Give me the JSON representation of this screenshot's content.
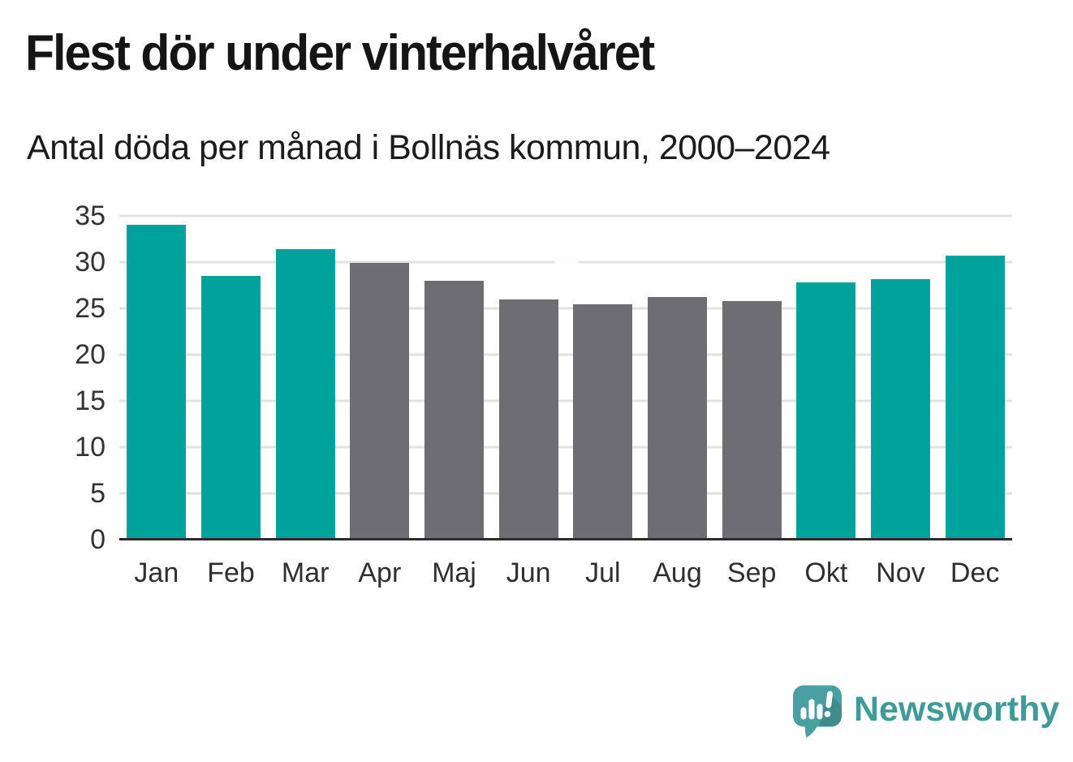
{
  "page": {
    "title": "Flest dör under vinterhalvåret",
    "subtitle": "Antal döda per månad i Bollnäs kommun, 2000–2024"
  },
  "chart_data": {
    "type": "bar",
    "title": "Flest dör under vinterhalvåret",
    "subtitle": "Antal döda per månad i Bollnäs kommun, 2000–2024",
    "categories": [
      "Jan",
      "Feb",
      "Mar",
      "Apr",
      "Maj",
      "Jun",
      "Jul",
      "Aug",
      "Sep",
      "Okt",
      "Nov",
      "Dec"
    ],
    "values": [
      34.0,
      28.5,
      31.4,
      29.9,
      28.0,
      26.0,
      25.4,
      26.2,
      25.8,
      27.8,
      28.2,
      30.7
    ],
    "bar_colors": [
      "#00a39b",
      "#00a39b",
      "#00a39b",
      "#6d6d73",
      "#6d6d73",
      "#6d6d73",
      "#6d6d73",
      "#6d6d73",
      "#6d6d73",
      "#00a39b",
      "#00a39b",
      "#00a39b"
    ],
    "highlight_color": "#00a39b",
    "base_color": "#6d6d73",
    "xlabel": "",
    "ylabel": "",
    "ylim": [
      0,
      35
    ],
    "yticks": [
      0,
      5,
      10,
      15,
      20,
      25,
      30,
      35
    ],
    "grid": true,
    "legend": false
  },
  "colors": {
    "teal_bar": "#00a39b",
    "gray_bar": "#6d6d73",
    "gridline": "#e2e2e2",
    "axis_line": "#2b2b2b",
    "tick_text": "#333333",
    "title_text": "#151515",
    "logo_teal": "#3e9b98",
    "logo_icon_teal": "#4aa0a0",
    "background": "#ffffff"
  },
  "branding": {
    "name": "Newsworthy"
  }
}
